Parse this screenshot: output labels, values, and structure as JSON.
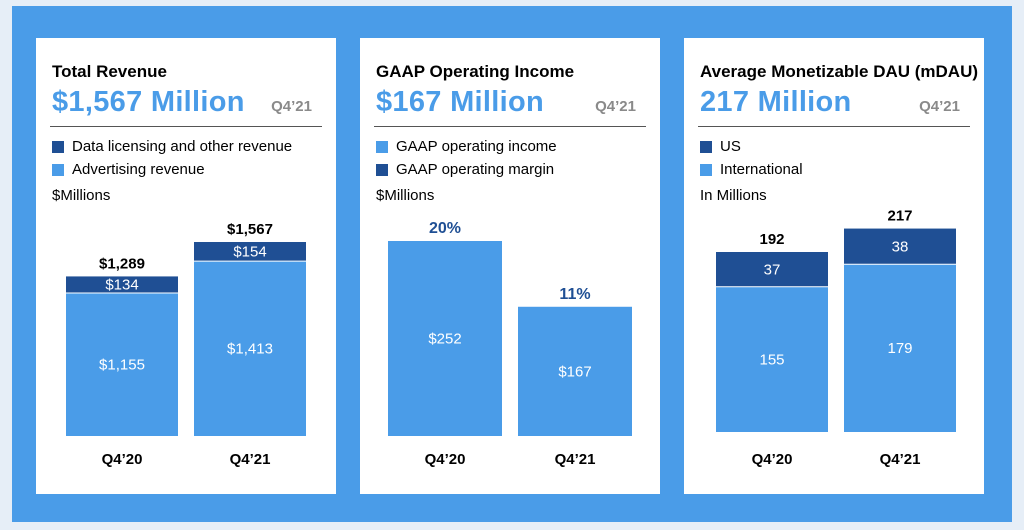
{
  "colors": {
    "light": "#4a9ce8",
    "dark": "#1f4f94",
    "background": "#4a9ce8"
  },
  "panels": [
    {
      "title": "Total Revenue",
      "headline": "$1,567 Million",
      "period": "Q4’21",
      "legend": [
        {
          "label": "Data licensing and other revenue",
          "color": "#1f4f94"
        },
        {
          "label": "Advertising revenue",
          "color": "#4a9ce8"
        }
      ],
      "unit": "$Millions"
    },
    {
      "title": "GAAP Operating Income",
      "headline": "$167 Million",
      "period": "Q4’21",
      "legend": [
        {
          "label": "GAAP operating income",
          "color": "#4a9ce8"
        },
        {
          "label": "GAAP operating margin",
          "color": "#1f4f94"
        }
      ],
      "unit": "$Millions"
    },
    {
      "title": "Average Monetizable DAU (mDAU)",
      "headline": "217 Million",
      "period": "Q4’21",
      "legend": [
        {
          "label": "US",
          "color": "#1f4f94"
        },
        {
          "label": "International",
          "color": "#4a9ce8"
        }
      ],
      "unit": "In Millions"
    }
  ],
  "chart_data": [
    {
      "type": "bar",
      "stacked": true,
      "title": "Total Revenue",
      "categories": [
        "Q4’20",
        "Q4’21"
      ],
      "series": [
        {
          "name": "Advertising revenue",
          "values": [
            1155,
            1413
          ],
          "labels": [
            "$1,155",
            "$1,413"
          ],
          "color": "#4a9ce8"
        },
        {
          "name": "Data licensing and other revenue",
          "values": [
            134,
            154
          ],
          "labels": [
            "$134",
            "$154"
          ],
          "color": "#1f4f94"
        }
      ],
      "totals": [
        "$1,289",
        "$1,567"
      ]
    },
    {
      "type": "bar",
      "title": "GAAP Operating Income",
      "categories": [
        "Q4’20",
        "Q4’21"
      ],
      "series": [
        {
          "name": "GAAP operating income",
          "values": [
            252,
            167
          ],
          "labels": [
            "$252",
            "$167"
          ],
          "color": "#4a9ce8"
        }
      ],
      "margins": [
        "20%",
        "11%"
      ]
    },
    {
      "type": "bar",
      "stacked": true,
      "title": "Average Monetizable DAU (mDAU)",
      "categories": [
        "Q4’20",
        "Q4’21"
      ],
      "series": [
        {
          "name": "International",
          "values": [
            155,
            179
          ],
          "labels": [
            "155",
            "179"
          ],
          "color": "#4a9ce8"
        },
        {
          "name": "US",
          "values": [
            37,
            38
          ],
          "labels": [
            "37",
            "38"
          ],
          "color": "#1f4f94"
        }
      ],
      "totals": [
        "192",
        "217"
      ]
    }
  ]
}
